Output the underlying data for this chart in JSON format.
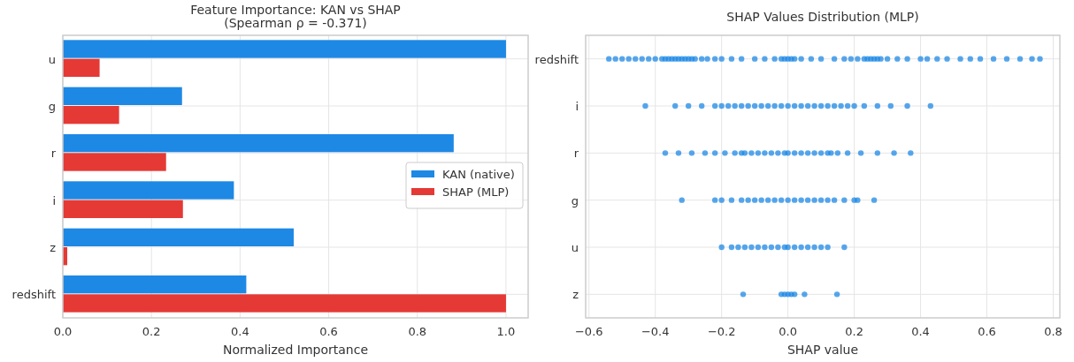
{
  "chart_data": [
    {
      "type": "bar",
      "orientation": "horizontal",
      "title": "Feature Importance: KAN vs SHAP\n(Spearman ρ = -0.371)",
      "xlabel": "Normalized Importance",
      "categories": [
        "u",
        "g",
        "r",
        "i",
        "z",
        "redshift"
      ],
      "xlim": [
        0,
        1.05
      ],
      "xticks": [
        {
          "value": 0,
          "label": "0.0"
        },
        0.2,
        0.4,
        0.6,
        0.8,
        {
          "value": 1,
          "label": "1.0"
        }
      ],
      "grid": true,
      "legend": "right",
      "series": [
        {
          "name": "KAN (native)",
          "color": "#1e88e5",
          "values": [
            1.0,
            0.269,
            0.882,
            0.386,
            0.521,
            0.414
          ]
        },
        {
          "name": "SHAP (MLP)",
          "color": "#e53935",
          "values": [
            0.083,
            0.127,
            0.233,
            0.271,
            0.01,
            1.0
          ]
        }
      ]
    },
    {
      "type": "scatter",
      "orientation": "horizontal",
      "title": "SHAP Values Distribution (MLP)",
      "xlabel": "SHAP value",
      "categories": [
        "redshift",
        "i",
        "r",
        "g",
        "u",
        "z"
      ],
      "xlim": [
        -0.61,
        0.82
      ],
      "xticks": [
        {
          "value": -0.6,
          "label": "−0.6"
        },
        {
          "value": -0.4,
          "label": "−0.4"
        },
        {
          "value": -0.2,
          "label": "−0.2"
        },
        {
          "value": 0,
          "label": "0.0"
        },
        0.2,
        0.4,
        0.6,
        0.8
      ],
      "grid": true,
      "marker": "circle",
      "series": [
        {
          "color": "#1e88e5",
          "x": [
            "redshift",
            "redshift",
            "redshift",
            "redshift",
            "redshift",
            "redshift",
            "redshift",
            "redshift",
            "redshift",
            "redshift",
            "redshift",
            "redshift",
            "redshift",
            "redshift",
            "redshift",
            "redshift",
            "redshift",
            "redshift",
            "redshift",
            "redshift",
            "redshift",
            "redshift",
            "redshift",
            "redshift",
            "redshift",
            "redshift",
            "redshift",
            "redshift",
            "redshift",
            "redshift",
            "redshift",
            "redshift",
            "redshift",
            "redshift",
            "redshift",
            "redshift",
            "redshift",
            "redshift",
            "redshift",
            "redshift",
            "redshift",
            "redshift",
            "redshift",
            "redshift",
            "redshift",
            "redshift",
            "redshift",
            "redshift",
            "redshift",
            "redshift",
            "redshift",
            "redshift",
            "redshift",
            "redshift",
            "redshift",
            "redshift",
            "redshift",
            "redshift",
            "redshift",
            "redshift",
            "redshift",
            "i",
            "i",
            "i",
            "i",
            "i",
            "i",
            "i",
            "i",
            "i",
            "i",
            "i",
            "i",
            "i",
            "i",
            "i",
            "i",
            "i",
            "i",
            "i",
            "i",
            "i",
            "i",
            "i",
            "i",
            "i",
            "i",
            "i",
            "i",
            "i",
            "i",
            "i",
            "r",
            "r",
            "r",
            "r",
            "r",
            "r",
            "r",
            "r",
            "r",
            "r",
            "r",
            "r",
            "r",
            "r",
            "r",
            "r",
            "r",
            "r",
            "r",
            "r",
            "r",
            "r",
            "r",
            "r",
            "r",
            "r",
            "r",
            "r",
            "r",
            "g",
            "g",
            "g",
            "g",
            "g",
            "g",
            "g",
            "g",
            "g",
            "g",
            "g",
            "g",
            "g",
            "g",
            "g",
            "g",
            "g",
            "g",
            "g",
            "g",
            "g",
            "g",
            "g",
            "u",
            "u",
            "u",
            "u",
            "u",
            "u",
            "u",
            "u",
            "u",
            "u",
            "u",
            "u",
            "u",
            "u",
            "u",
            "u",
            "u",
            "u",
            "z",
            "z",
            "z",
            "z",
            "z",
            "z",
            "z",
            "z"
          ],
          "values": [
            -0.54,
            -0.52,
            -0.5,
            -0.48,
            -0.46,
            -0.44,
            -0.42,
            -0.4,
            -0.38,
            -0.37,
            -0.36,
            -0.35,
            -0.34,
            -0.33,
            -0.32,
            -0.31,
            -0.3,
            -0.29,
            -0.28,
            -0.26,
            -0.243,
            -0.22,
            -0.2,
            -0.17,
            -0.14,
            -0.1,
            -0.07,
            -0.04,
            -0.02,
            -0.01,
            0,
            0.01,
            0.02,
            0.04,
            0.07,
            0.1,
            0.14,
            0.17,
            0.19,
            0.21,
            0.23,
            0.24,
            0.25,
            0.26,
            0.27,
            0.28,
            0.3,
            0.33,
            0.36,
            0.4,
            0.42,
            0.45,
            0.48,
            0.52,
            0.55,
            0.58,
            0.62,
            0.66,
            0.7,
            0.736,
            0.76,
            -0.43,
            -0.34,
            -0.3,
            -0.26,
            -0.22,
            -0.2,
            -0.18,
            -0.16,
            -0.14,
            -0.12,
            -0.1,
            -0.08,
            -0.06,
            -0.04,
            -0.02,
            0,
            0.02,
            0.04,
            0.06,
            0.08,
            0.1,
            0.12,
            0.14,
            0.16,
            0.18,
            0.2,
            0.23,
            0.27,
            0.31,
            0.36,
            0.43,
            -0.37,
            -0.33,
            -0.29,
            -0.25,
            -0.22,
            -0.19,
            -0.16,
            -0.14,
            -0.13,
            -0.11,
            -0.09,
            -0.07,
            -0.05,
            -0.03,
            -0.01,
            0,
            0.02,
            0.04,
            0.06,
            0.08,
            0.1,
            0.12,
            0.13,
            0.15,
            0.18,
            0.22,
            0.27,
            0.32,
            0.37,
            -0.32,
            -0.22,
            -0.2,
            -0.17,
            -0.14,
            -0.12,
            -0.1,
            -0.08,
            -0.06,
            -0.04,
            -0.02,
            0,
            0.02,
            0.04,
            0.06,
            0.08,
            0.1,
            0.12,
            0.14,
            0.17,
            0.2,
            0.21,
            0.26,
            -0.2,
            -0.17,
            -0.15,
            -0.13,
            -0.11,
            -0.09,
            -0.07,
            -0.05,
            -0.03,
            -0.01,
            0,
            0.02,
            0.04,
            0.06,
            0.08,
            0.1,
            0.12,
            0.17,
            -0.135,
            -0.02,
            -0.01,
            0,
            0.01,
            0.02,
            0.05,
            0.148
          ]
        }
      ]
    }
  ]
}
